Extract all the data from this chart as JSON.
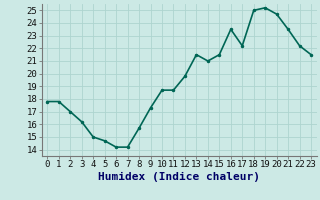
{
  "x": [
    0,
    1,
    2,
    3,
    4,
    5,
    6,
    7,
    8,
    9,
    10,
    11,
    12,
    13,
    14,
    15,
    16,
    17,
    18,
    19,
    20,
    21,
    22,
    23
  ],
  "y": [
    17.8,
    17.8,
    17.0,
    16.2,
    15.0,
    14.7,
    14.2,
    14.2,
    15.7,
    17.3,
    18.7,
    18.7,
    19.8,
    21.5,
    21.0,
    21.5,
    23.5,
    22.2,
    25.0,
    25.2,
    24.7,
    23.5,
    22.2,
    21.5
  ],
  "xlabel": "Humidex (Indice chaleur)",
  "ylim_min": 13.5,
  "ylim_max": 25.5,
  "xlim_min": -0.5,
  "xlim_max": 23.5,
  "bg_color": "#cce9e5",
  "grid_color": "#aed4cf",
  "line_color": "#006655",
  "marker_color": "#006655",
  "tick_label_color": "#111111",
  "xlabel_color": "#000066",
  "xlabel_fontsize": 8,
  "tick_fontsize": 6.5,
  "linewidth": 1.2,
  "markersize": 3.0
}
